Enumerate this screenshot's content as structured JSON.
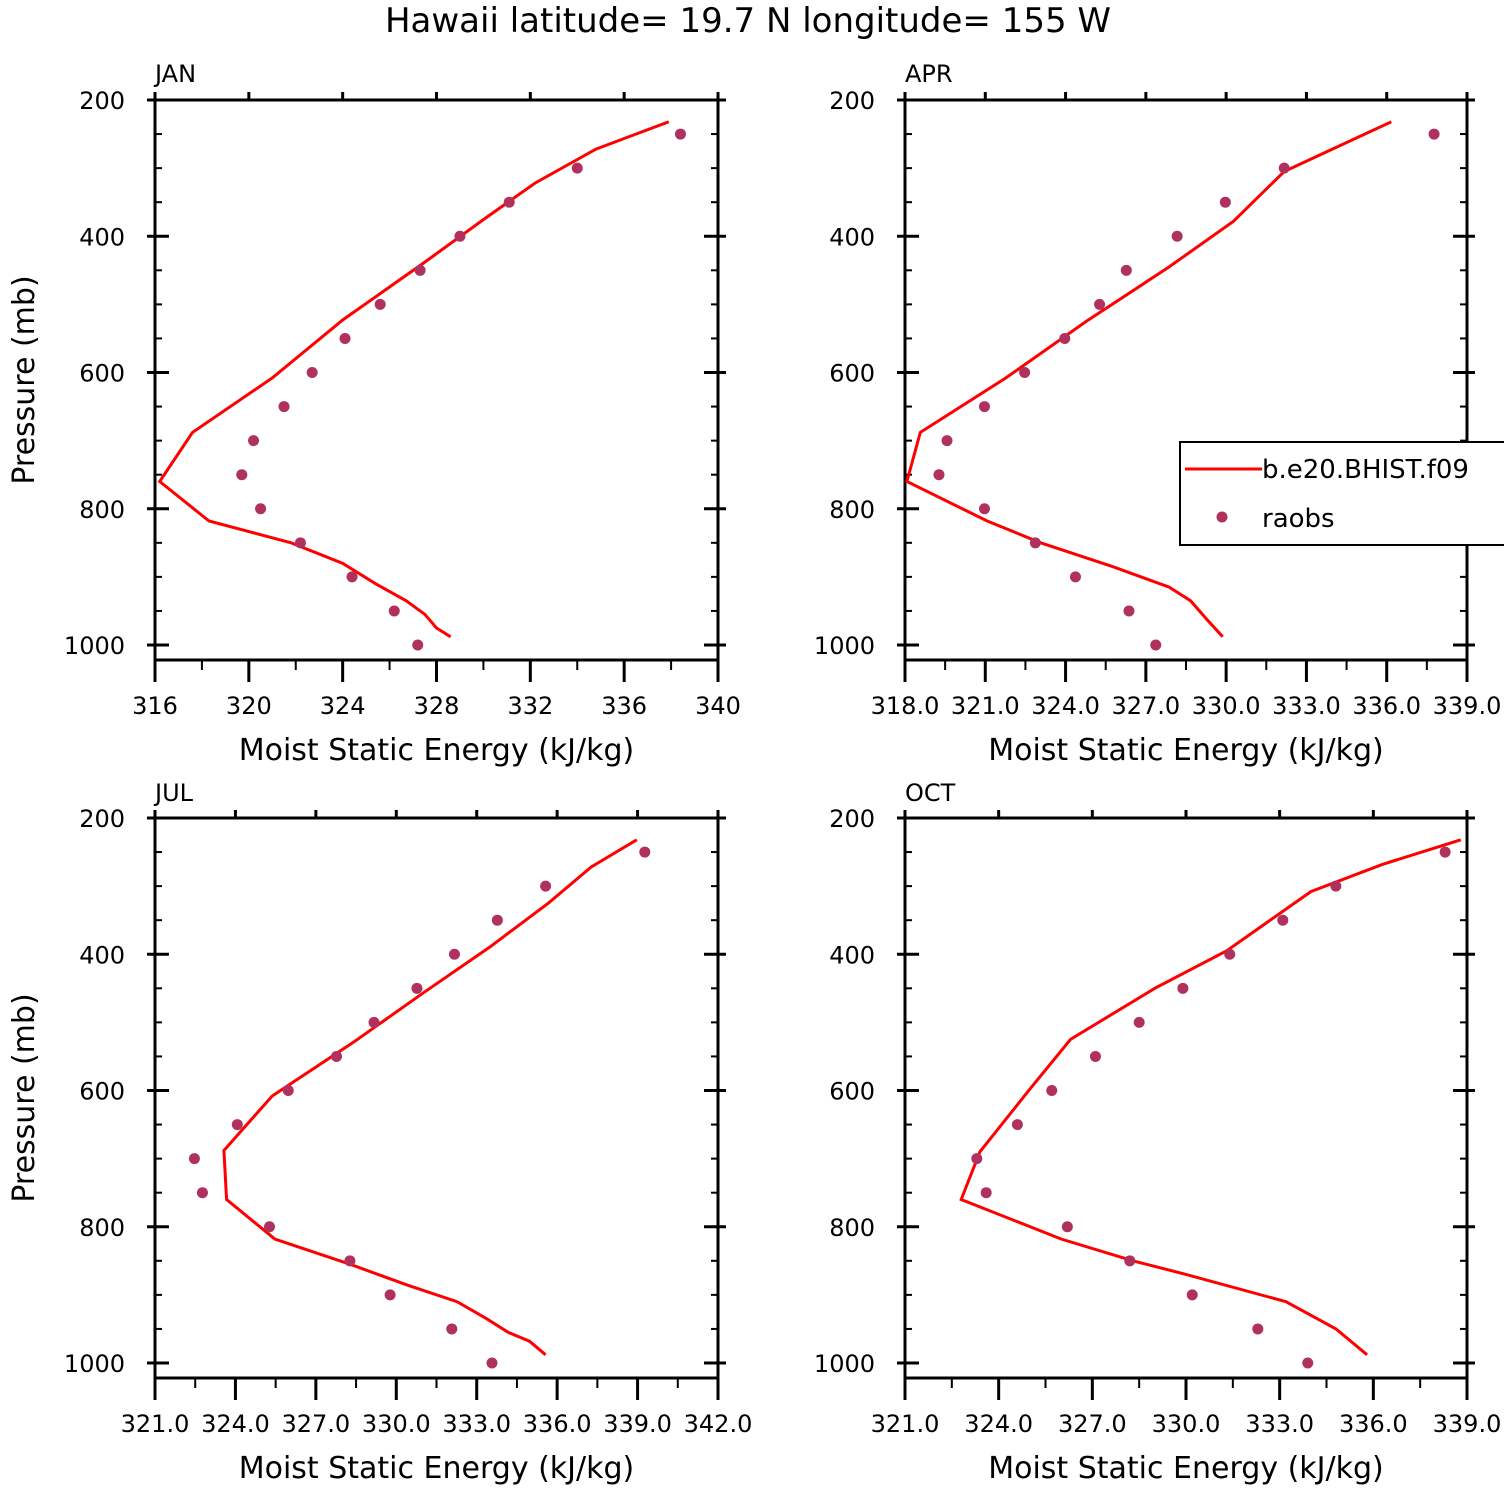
{
  "title": "Hawaii  latitude= 19.7 N longitude= 155 W",
  "colors": {
    "model": "#ff0000",
    "obs": "#b03060",
    "axis": "#000000"
  },
  "legend": {
    "model_label": "b.e20.BHIST.f09",
    "obs_label": "raobs"
  },
  "chart_data": [
    {
      "type": "line",
      "panel": "JAN",
      "xlabel": "Moist Static Energy (kJ/kg)",
      "ylabel": "Pressure (mb)",
      "xlim": [
        316,
        340
      ],
      "ylim": [
        1000,
        200
      ],
      "xticks": [
        316,
        320,
        324,
        328,
        332,
        336,
        340
      ],
      "xtick_labels": [
        "316",
        "320",
        "324",
        "328",
        "332",
        "336",
        "340"
      ],
      "yticks": [
        200,
        400,
        600,
        800,
        1000
      ],
      "ytick_labels": [
        "200",
        "400",
        "600",
        "800",
        "1000"
      ],
      "series": [
        {
          "name": "b.e20.BHIST.f09",
          "style": "line",
          "x": [
            337.9,
            334.8,
            332.2,
            330.1,
            327.5,
            324.0,
            321.0,
            317.6,
            316.2,
            318.3,
            321.8,
            324.0,
            325.4,
            326.7,
            327.5,
            328.0,
            328.6
          ],
          "y": [
            232,
            272,
            322,
            373,
            438,
            523,
            608,
            688,
            760,
            818,
            850,
            880,
            910,
            935,
            955,
            975,
            988
          ]
        },
        {
          "name": "raobs",
          "style": "markers",
          "x": [
            338.4,
            334.0,
            331.1,
            329.0,
            327.3,
            325.6,
            324.1,
            322.7,
            321.5,
            320.2,
            319.7,
            320.5,
            322.2,
            324.4,
            326.2,
            327.2
          ],
          "y": [
            250,
            300,
            350,
            400,
            450,
            500,
            550,
            600,
            650,
            700,
            750,
            800,
            850,
            900,
            950,
            1000
          ]
        }
      ]
    },
    {
      "type": "line",
      "panel": "APR",
      "xlabel": "Moist Static Energy (kJ/kg)",
      "ylabel": "",
      "xlim": [
        318.03,
        339.03
      ],
      "ylim": [
        1000,
        200
      ],
      "xticks": [
        318.03,
        321.03,
        324.03,
        327.03,
        330.03,
        333.03,
        336.03,
        339.03
      ],
      "xtick_labels": [
        "318.0",
        "321.0",
        "324.0",
        "327.0",
        "330.0",
        "333.0",
        "336.0",
        "339.0"
      ],
      "yticks": [
        200,
        400,
        600,
        800,
        1000
      ],
      "ytick_labels": [
        "200",
        "400",
        "600",
        "800",
        "1000"
      ],
      "series": [
        {
          "name": "b.e20.BHIST.f09",
          "style": "line",
          "x": [
            336.2,
            334.0,
            332.2,
            330.3,
            327.9,
            324.8,
            321.8,
            318.6,
            318.1,
            321.1,
            323.1,
            325.8,
            327.9,
            328.7,
            329.3,
            329.9
          ],
          "y": [
            232,
            272,
            305,
            378,
            445,
            525,
            608,
            688,
            760,
            818,
            850,
            885,
            915,
            935,
            962,
            988
          ]
        },
        {
          "name": "raobs",
          "style": "markers",
          "x": [
            337.8,
            332.2,
            330.0,
            328.2,
            326.3,
            325.3,
            324.0,
            322.5,
            321.0,
            319.6,
            319.3,
            321.0,
            322.9,
            324.4,
            326.4,
            327.4
          ],
          "y": [
            250,
            300,
            350,
            400,
            450,
            500,
            550,
            600,
            650,
            700,
            750,
            800,
            850,
            900,
            950,
            1000
          ]
        }
      ]
    },
    {
      "type": "line",
      "panel": "JUL",
      "xlabel": "Moist Static Energy (kJ/kg)",
      "ylabel": "Pressure (mb)",
      "xlim": [
        321.03,
        342.03
      ],
      "ylim": [
        1000,
        200
      ],
      "xticks": [
        321.03,
        324.03,
        327.03,
        330.03,
        333.03,
        336.03,
        339.03,
        342.03
      ],
      "xtick_labels": [
        "321.0",
        "324.0",
        "327.0",
        "330.0",
        "333.0",
        "336.0",
        "339.0",
        "342.0"
      ],
      "yticks": [
        200,
        400,
        600,
        800,
        1000
      ],
      "ytick_labels": [
        "200",
        "400",
        "600",
        "800",
        "1000"
      ],
      "series": [
        {
          "name": "b.e20.BHIST.f09",
          "style": "line",
          "x": [
            339.0,
            337.3,
            335.7,
            333.5,
            331.1,
            328.4,
            325.4,
            323.6,
            323.7,
            325.5,
            328.3,
            330.4,
            332.3,
            333.4,
            334.2,
            335.0,
            335.6
          ],
          "y": [
            232,
            272,
            325,
            390,
            455,
            530,
            608,
            688,
            760,
            818,
            855,
            885,
            910,
            935,
            955,
            968,
            988
          ]
        },
        {
          "name": "raobs",
          "style": "markers",
          "x": [
            339.3,
            335.6,
            333.8,
            332.2,
            330.8,
            329.2,
            327.8,
            326.0,
            324.1,
            322.5,
            322.8,
            325.3,
            328.3,
            329.8,
            332.1,
            333.6
          ],
          "y": [
            250,
            300,
            350,
            400,
            450,
            500,
            550,
            600,
            650,
            700,
            750,
            800,
            850,
            900,
            950,
            1000
          ]
        }
      ]
    },
    {
      "type": "line",
      "panel": "OCT",
      "xlabel": "Moist Static Energy (kJ/kg)",
      "ylabel": "",
      "xlim": [
        321.0,
        339.0
      ],
      "ylim": [
        1000,
        200
      ],
      "xticks": [
        321.0,
        324.0,
        327.0,
        330.0,
        333.0,
        336.0,
        339.0
      ],
      "xtick_labels": [
        "321.0",
        "324.0",
        "327.0",
        "330.0",
        "333.0",
        "336.0",
        "339.0"
      ],
      "yticks": [
        200,
        400,
        600,
        800,
        1000
      ],
      "ytick_labels": [
        "200",
        "400",
        "600",
        "800",
        "1000"
      ],
      "series": [
        {
          "name": "b.e20.BHIST.f09",
          "style": "line",
          "x": [
            338.8,
            336.3,
            334.0,
            331.3,
            329.0,
            326.3,
            325.0,
            323.4,
            322.8,
            326.0,
            328.3,
            330.0,
            333.2,
            334.8,
            335.8
          ],
          "y": [
            232,
            268,
            308,
            395,
            450,
            525,
            598,
            690,
            760,
            818,
            850,
            870,
            910,
            950,
            988
          ]
        },
        {
          "name": "raobs",
          "style": "markers",
          "x": [
            338.3,
            334.8,
            333.1,
            331.4,
            329.9,
            328.5,
            327.1,
            325.7,
            324.6,
            323.3,
            323.6,
            326.2,
            328.2,
            330.2,
            332.3,
            333.9
          ],
          "y": [
            250,
            300,
            350,
            400,
            450,
            500,
            550,
            600,
            650,
            700,
            750,
            800,
            850,
            900,
            950,
            1000
          ]
        }
      ]
    }
  ]
}
